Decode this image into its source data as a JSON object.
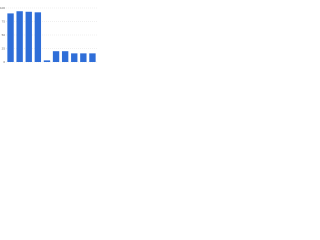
{
  "chart_data": {
    "type": "bar",
    "categories": [
      null,
      null,
      null,
      null,
      null,
      null,
      null,
      null,
      null,
      null
    ],
    "values": [
      90,
      94,
      93,
      92,
      3,
      20,
      20,
      16,
      16,
      16
    ],
    "color": "#2f6ed8",
    "ylim": [
      0,
      100
    ],
    "yticks": [
      0,
      25,
      50,
      75,
      100
    ],
    "grid": true
  }
}
